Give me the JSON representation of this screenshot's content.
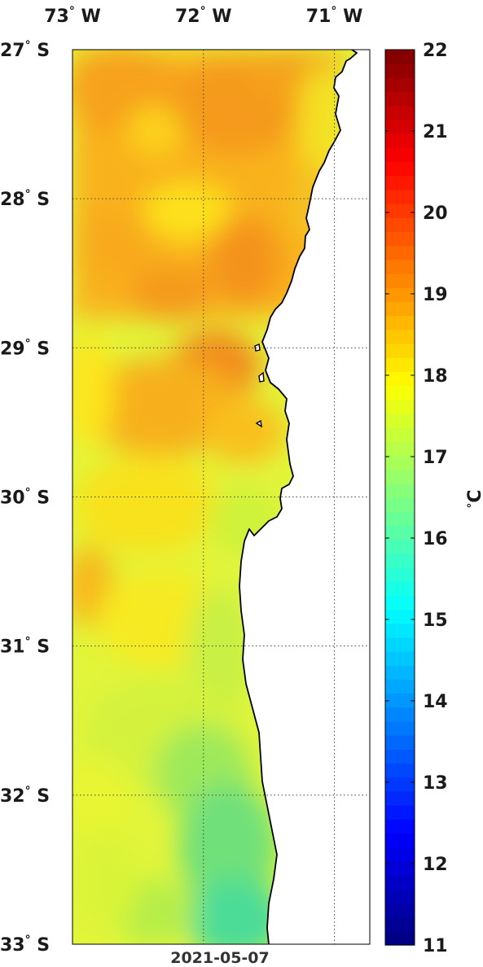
{
  "map": {
    "lon_labels": [
      {
        "deg": "73",
        "dir": "W",
        "lon": -73
      },
      {
        "deg": "72",
        "dir": "W",
        "lon": -72
      },
      {
        "deg": "71",
        "dir": "W",
        "lon": -71
      }
    ],
    "lat_labels": [
      {
        "deg": "27",
        "dir": "S",
        "lat": -27
      },
      {
        "deg": "28",
        "dir": "S",
        "lat": -28
      },
      {
        "deg": "29",
        "dir": "S",
        "lat": -29
      },
      {
        "deg": "30",
        "dir": "S",
        "lat": -30
      },
      {
        "deg": "31",
        "dir": "S",
        "lat": -31
      },
      {
        "deg": "32",
        "dir": "S",
        "lat": -32
      },
      {
        "deg": "33",
        "dir": "S",
        "lat": -33
      }
    ],
    "lon_range": [
      -73.0,
      -70.73
    ],
    "lat_range": [
      -33.0,
      -27.0
    ],
    "date": "2021-05-07",
    "land_color": "#ffffff",
    "coast_color": "#000000"
  },
  "colorbar": {
    "ticks": [
      "22",
      "21",
      "20",
      "19",
      "18",
      "17",
      "16",
      "15",
      "14",
      "13",
      "12",
      "11"
    ],
    "min": 11,
    "max": 22,
    "unit_deg": "°",
    "unit_letter": "C",
    "colormap": "jet"
  }
}
